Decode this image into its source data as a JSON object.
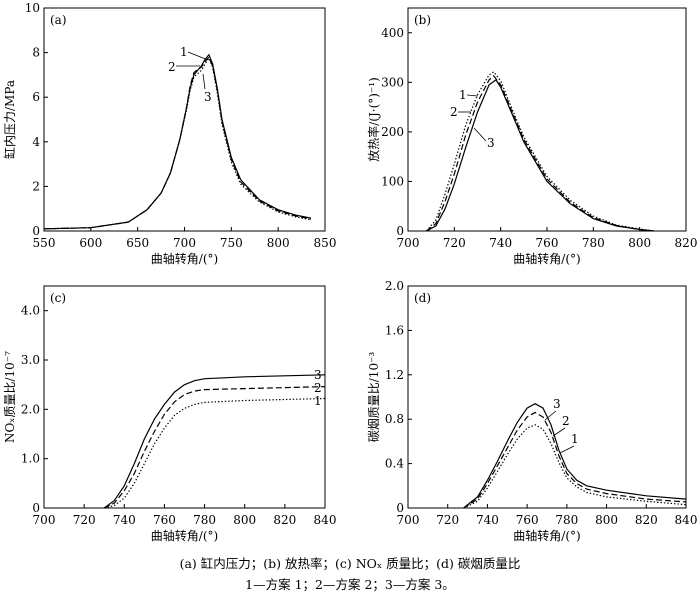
{
  "chart_data": [
    {
      "id": "a",
      "type": "line",
      "panel_label": "(a)",
      "xlabel": "曲轴转角/(°)",
      "ylabel": "缸内压力/MPa",
      "xlim": [
        550,
        850
      ],
      "ylim": [
        0,
        10
      ],
      "xticks": [
        550,
        600,
        650,
        700,
        750,
        800,
        850
      ],
      "yticks": [
        0,
        2,
        4,
        6,
        8,
        10
      ],
      "series": [
        {
          "name": "1",
          "style": "solid",
          "x": [
            550,
            600,
            640,
            660,
            675,
            685,
            695,
            702,
            706,
            710,
            714,
            718,
            722,
            726,
            730,
            735,
            740,
            750,
            760,
            780,
            800,
            820,
            835
          ],
          "y": [
            0.1,
            0.15,
            0.4,
            0.95,
            1.7,
            2.6,
            4.1,
            5.5,
            6.4,
            7.0,
            7.2,
            7.4,
            7.7,
            7.9,
            7.5,
            6.4,
            5.0,
            3.3,
            2.3,
            1.4,
            0.95,
            0.7,
            0.58
          ]
        },
        {
          "name": "2",
          "style": "dashed",
          "x": [
            550,
            600,
            640,
            660,
            675,
            685,
            695,
            702,
            706,
            710,
            714,
            718,
            722,
            726,
            730,
            735,
            740,
            750,
            760,
            780,
            800,
            820,
            835
          ],
          "y": [
            0.1,
            0.15,
            0.4,
            0.95,
            1.7,
            2.6,
            4.1,
            5.5,
            6.5,
            7.1,
            7.25,
            7.35,
            7.6,
            7.8,
            7.4,
            6.3,
            4.9,
            3.2,
            2.2,
            1.35,
            0.9,
            0.66,
            0.54
          ]
        },
        {
          "name": "3",
          "style": "dotted",
          "x": [
            550,
            600,
            640,
            660,
            675,
            685,
            695,
            702,
            706,
            710,
            714,
            718,
            722,
            726,
            730,
            735,
            740,
            750,
            760,
            780,
            800,
            820,
            835
          ],
          "y": [
            0.1,
            0.15,
            0.4,
            0.95,
            1.7,
            2.6,
            4.1,
            5.4,
            6.3,
            6.9,
            7.05,
            7.2,
            7.5,
            7.75,
            7.35,
            6.2,
            4.8,
            3.1,
            2.1,
            1.3,
            0.85,
            0.62,
            0.5
          ]
        }
      ],
      "annotations": [
        "1",
        "2",
        "3"
      ]
    },
    {
      "id": "b",
      "type": "line",
      "panel_label": "(b)",
      "xlabel": "曲轴转角/(°)",
      "ylabel": "放热率/(J·(°)⁻¹)",
      "xlim": [
        700,
        820
      ],
      "ylim": [
        0,
        450
      ],
      "xticks": [
        700,
        720,
        740,
        760,
        780,
        800,
        820
      ],
      "yticks": [
        0,
        100,
        200,
        300,
        400
      ],
      "series": [
        {
          "name": "3",
          "style": "solid",
          "x": [
            708,
            712,
            716,
            720,
            725,
            730,
            735,
            738,
            740,
            745,
            750,
            760,
            770,
            780,
            790,
            800,
            806
          ],
          "y": [
            0,
            10,
            45,
            95,
            170,
            240,
            295,
            305,
            290,
            235,
            180,
            100,
            55,
            25,
            10,
            3,
            0
          ]
        },
        {
          "name": "2",
          "style": "dashed",
          "x": [
            708,
            712,
            716,
            720,
            725,
            730,
            735,
            737,
            740,
            745,
            750,
            760,
            770,
            780,
            790,
            800,
            806
          ],
          "y": [
            0,
            15,
            60,
            115,
            195,
            260,
            305,
            313,
            295,
            240,
            185,
            105,
            58,
            27,
            11,
            3,
            0
          ]
        },
        {
          "name": "1",
          "style": "dotted",
          "x": [
            708,
            712,
            716,
            720,
            725,
            730,
            735,
            737,
            740,
            745,
            750,
            760,
            770,
            780,
            790,
            800,
            806
          ],
          "y": [
            0,
            22,
            75,
            135,
            215,
            275,
            315,
            321,
            303,
            245,
            190,
            110,
            62,
            30,
            12,
            4,
            0
          ]
        }
      ],
      "annotations": [
        "1",
        "2",
        "3"
      ]
    },
    {
      "id": "c",
      "type": "line",
      "panel_label": "(c)",
      "xlabel": "曲轴转角/(°)",
      "ylabel": "NOₓ质量比/10⁻⁷",
      "xlim": [
        700,
        840
      ],
      "ylim": [
        0,
        4.5
      ],
      "xticks": [
        700,
        720,
        740,
        760,
        780,
        800,
        820,
        840
      ],
      "yticks": [
        0,
        1.0,
        2.0,
        3.0,
        4.0
      ],
      "ytick_labels": [
        "0",
        "1.0",
        "2.0",
        "3.0",
        "4.0"
      ],
      "series": [
        {
          "name": "3",
          "style": "solid",
          "x": [
            730,
            735,
            740,
            745,
            750,
            755,
            760,
            765,
            770,
            775,
            780,
            790,
            800,
            820,
            840
          ],
          "y": [
            0,
            0.15,
            0.45,
            0.9,
            1.4,
            1.8,
            2.1,
            2.35,
            2.5,
            2.58,
            2.62,
            2.64,
            2.66,
            2.68,
            2.7
          ]
        },
        {
          "name": "2",
          "style": "dashed",
          "x": [
            730,
            735,
            740,
            745,
            750,
            755,
            760,
            765,
            770,
            775,
            780,
            790,
            800,
            820,
            840
          ],
          "y": [
            0,
            0.1,
            0.35,
            0.7,
            1.15,
            1.55,
            1.9,
            2.15,
            2.3,
            2.37,
            2.4,
            2.41,
            2.42,
            2.44,
            2.46
          ]
        },
        {
          "name": "1",
          "style": "dotted",
          "x": [
            730,
            735,
            740,
            745,
            750,
            755,
            760,
            765,
            770,
            775,
            780,
            790,
            800,
            820,
            840
          ],
          "y": [
            0,
            0.05,
            0.2,
            0.5,
            0.9,
            1.3,
            1.62,
            1.88,
            2.02,
            2.1,
            2.14,
            2.16,
            2.18,
            2.2,
            2.22
          ]
        }
      ],
      "annotations": [
        "3",
        "2",
        "1"
      ]
    },
    {
      "id": "d",
      "type": "line",
      "panel_label": "(d)",
      "xlabel": "曲轴转角/(°)",
      "ylabel": "碳烟质量比/10⁻³",
      "xlim": [
        700,
        840
      ],
      "ylim": [
        0,
        2.0
      ],
      "xticks": [
        700,
        720,
        740,
        760,
        780,
        800,
        820,
        840
      ],
      "yticks": [
        0,
        0.4,
        0.8,
        1.2,
        1.6,
        2.0
      ],
      "ytick_labels": [
        "0",
        "0.4",
        "0.8",
        "1.2",
        "1.6",
        "2.0"
      ],
      "series": [
        {
          "name": "3",
          "style": "solid",
          "x": [
            728,
            735,
            740,
            745,
            750,
            755,
            760,
            764,
            768,
            772,
            776,
            780,
            785,
            790,
            800,
            820,
            840
          ],
          "y": [
            0,
            0.1,
            0.25,
            0.42,
            0.6,
            0.77,
            0.9,
            0.94,
            0.9,
            0.75,
            0.52,
            0.35,
            0.25,
            0.2,
            0.16,
            0.11,
            0.08
          ]
        },
        {
          "name": "2",
          "style": "dashed",
          "x": [
            728,
            735,
            740,
            745,
            750,
            755,
            760,
            764,
            768,
            772,
            776,
            780,
            785,
            790,
            800,
            820,
            840
          ],
          "y": [
            0,
            0.08,
            0.22,
            0.38,
            0.54,
            0.7,
            0.82,
            0.86,
            0.82,
            0.68,
            0.47,
            0.31,
            0.22,
            0.17,
            0.13,
            0.08,
            0.055
          ]
        },
        {
          "name": "1",
          "style": "dotted",
          "x": [
            728,
            735,
            740,
            745,
            750,
            755,
            760,
            764,
            768,
            772,
            776,
            780,
            785,
            790,
            800,
            820,
            840
          ],
          "y": [
            0,
            0.06,
            0.18,
            0.33,
            0.48,
            0.62,
            0.72,
            0.75,
            0.71,
            0.58,
            0.41,
            0.27,
            0.19,
            0.14,
            0.1,
            0.06,
            0.03
          ]
        }
      ],
      "annotations": [
        "3",
        "2",
        "1"
      ]
    }
  ],
  "caption": {
    "line1": "(a)  缸内压力；(b)  放热率；(c) NOₓ 质量比；(d)  碳烟质量比",
    "line2": "1—方案 1；2—方案 2；3—方案 3。"
  }
}
